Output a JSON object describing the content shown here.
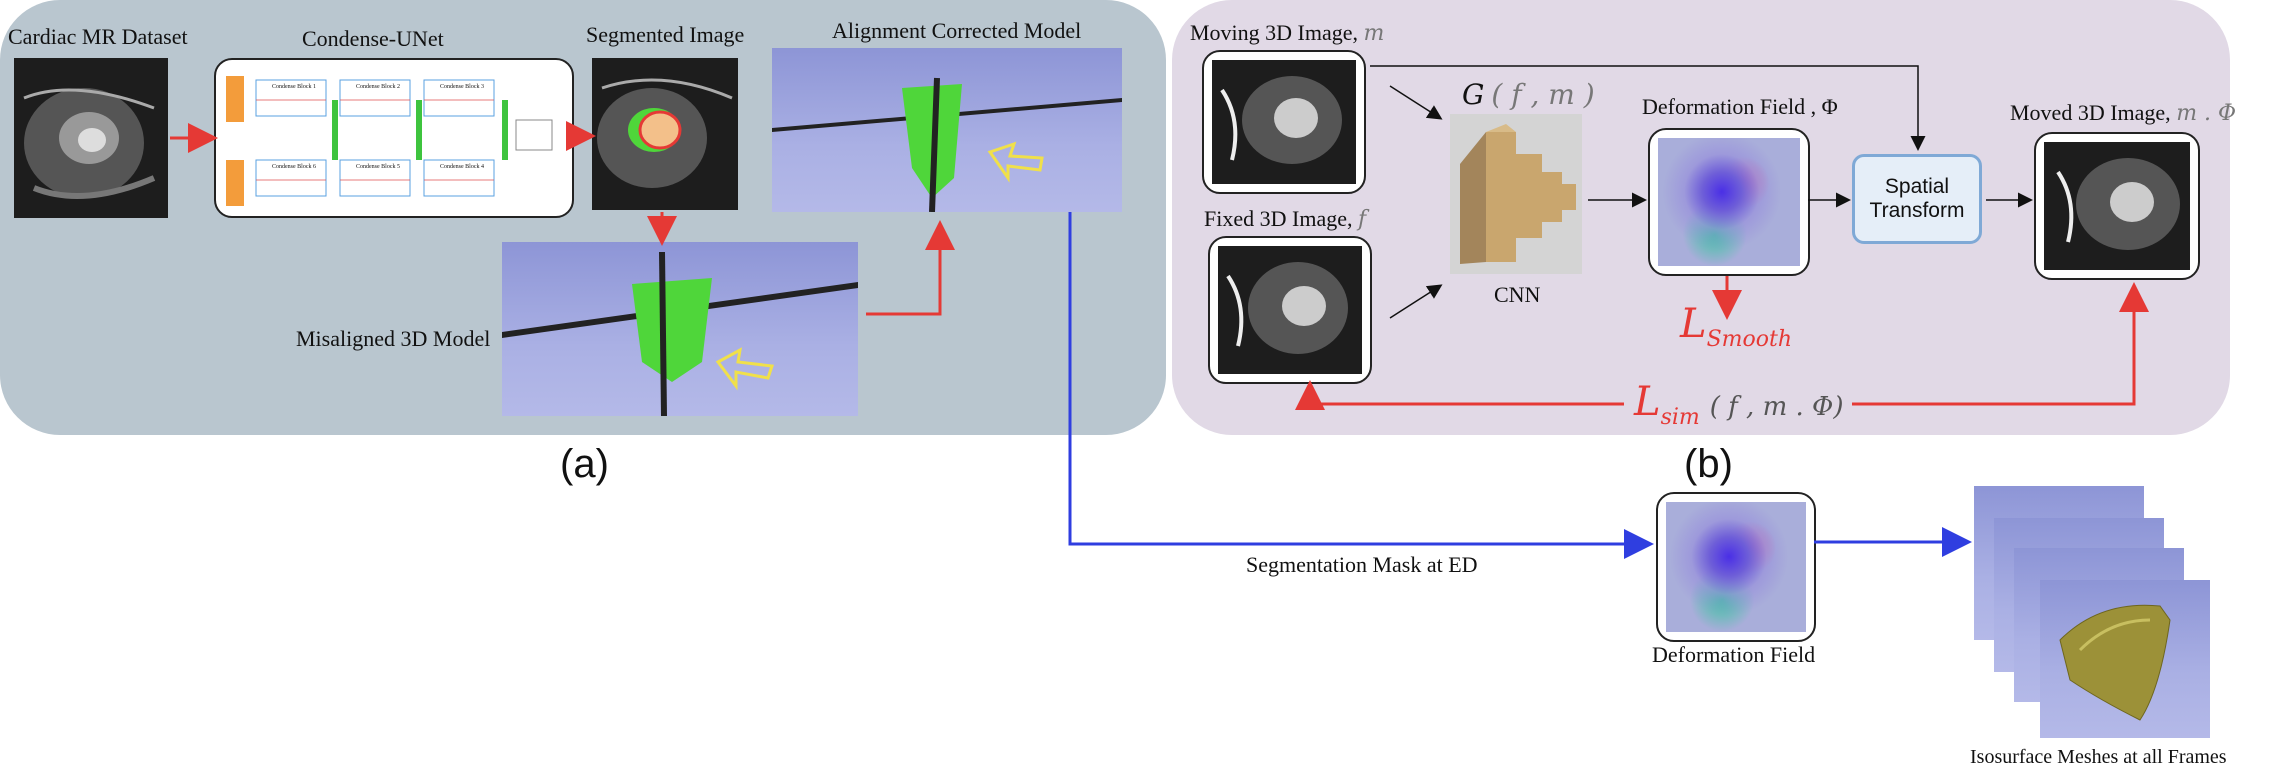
{
  "panel_a": {
    "cardiac_label": "Cardiac MR Dataset",
    "condense_label": "Condense-UNet",
    "segmented_label": "Segmented Image",
    "aligned_label": "Alignment Corrected Model",
    "misaligned_label": "Misaligned 3D Model",
    "caption": "(a)",
    "unet_blocks": [
      "Condense Block 1",
      "Condense Block 2",
      "Condense Block 3",
      "Condense Block 4",
      "Condense Block 5",
      "Condense Block 6"
    ]
  },
  "panel_b": {
    "moving_label": "Moving 3D Image,",
    "moving_var": "m",
    "fixed_label": "Fixed 3D Image,",
    "fixed_var": "f",
    "g_label": "G",
    "g_args": "( f , m )",
    "cnn_label": "CNN",
    "deformation_label": "Deformation Field ,",
    "phi": "Φ",
    "spatial_line1": "Spatial",
    "spatial_line2": "Transform",
    "moved_label": "Moved 3D Image,",
    "moved_var": "m . Φ",
    "lsmooth_main": "L",
    "lsmooth_sub": "Smooth",
    "lsim_main": "L",
    "lsim_sub": "sim",
    "lsim_args": "( f , m . Φ)",
    "caption": "(b)"
  },
  "bottom": {
    "seg_mask_label": "Segmentation Mask at ED",
    "deformation_field_label": "Deformation Field",
    "isosurface_label": "Isosurface Meshes at all Frames"
  },
  "colors": {
    "red_arrow": "#e53935",
    "blue_arrow": "#2f3ee0",
    "panel_a_bg": "#b9c6cf",
    "panel_b_bg": "#e1d9e6",
    "green_model": "#4fd63a"
  }
}
